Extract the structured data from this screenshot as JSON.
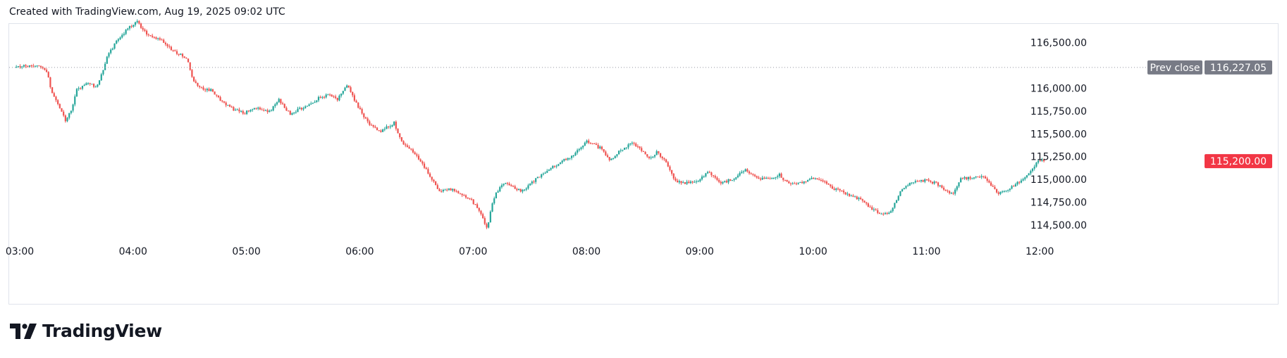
{
  "header": {
    "created_text": "Created with TradingView.com, Aug 19, 2025 09:02 UTC"
  },
  "brand": {
    "name": "TradingView",
    "logo_icon": "tradingview-logo-icon"
  },
  "colors": {
    "up": "#26a69a",
    "down": "#ef5350",
    "prev_close_tag": "#787b86",
    "last_price_tag": "#f23645",
    "grid_border": "#e0e3eb"
  },
  "chart_data": {
    "type": "candlestick",
    "time_labels": [
      "03:00",
      "04:00",
      "05:00",
      "06:00",
      "07:00",
      "08:00",
      "09:00",
      "10:00",
      "11:00",
      "12:00"
    ],
    "price_labels": [
      "116,500.00",
      "116,000.00",
      "115,750.00",
      "115,500.00",
      "115,250.00",
      "115,000.00",
      "114,750.00",
      "114,500.00"
    ],
    "price_ticks": [
      116500,
      116000,
      115750,
      115500,
      115250,
      115000,
      114750,
      114500
    ],
    "ylim": [
      114400,
      116760
    ],
    "prev_close": {
      "label": "Prev close",
      "value": 116227.05,
      "value_label": "116,227.05"
    },
    "last_price": {
      "value": 115200.0,
      "value_label": "115,200.00"
    },
    "path_hours": [
      2.97,
      3.05,
      3.15,
      3.25,
      3.3,
      3.35,
      3.42,
      3.47,
      3.52,
      3.6,
      3.7,
      3.8,
      3.9,
      3.97,
      4.05,
      4.12,
      4.18,
      4.28,
      4.35,
      4.42,
      4.5,
      4.55,
      4.6,
      4.7,
      4.8,
      4.9,
      5.0,
      5.1,
      5.22,
      5.3,
      5.4,
      5.5,
      5.58,
      5.66,
      5.74,
      5.82,
      5.86,
      5.9,
      6.0,
      6.1,
      6.2,
      6.32,
      6.38,
      6.48,
      6.58,
      6.66,
      6.72,
      6.8,
      6.9,
      7.0,
      7.08,
      7.14,
      7.18,
      7.22,
      7.28,
      7.35,
      7.45,
      7.55,
      7.7,
      7.8,
      7.9,
      8.02,
      8.08,
      8.16,
      8.22,
      8.3,
      8.42,
      8.5,
      8.58,
      8.64,
      8.72,
      8.8,
      8.9,
      9.0,
      9.1,
      9.2,
      9.3,
      9.42,
      9.52,
      9.62,
      9.72,
      9.8,
      9.9,
      10.0,
      10.1,
      10.2,
      10.3,
      10.4,
      10.46,
      10.52,
      10.58,
      10.64,
      10.7,
      10.8,
      10.9,
      11.0,
      11.1,
      11.2,
      11.25,
      11.32,
      11.45,
      11.52,
      11.58,
      11.64,
      11.72,
      11.8,
      11.88,
      11.94,
      12.0,
      12.05
    ],
    "path_prices": [
      116230,
      116240,
      116250,
      116210,
      115950,
      115850,
      115650,
      115760,
      115980,
      116050,
      116020,
      116380,
      116560,
      116650,
      116730,
      116620,
      116560,
      116520,
      116420,
      116380,
      116300,
      116080,
      116000,
      115980,
      115860,
      115770,
      115730,
      115780,
      115740,
      115880,
      115720,
      115780,
      115820,
      115900,
      115920,
      115880,
      115960,
      116050,
      115800,
      115600,
      115530,
      115620,
      115420,
      115320,
      115150,
      114980,
      114880,
      114900,
      114850,
      114780,
      114640,
      114460,
      114700,
      114850,
      114960,
      114930,
      114870,
      114980,
      115120,
      115200,
      115270,
      115420,
      115380,
      115330,
      115200,
      115300,
      115400,
      115330,
      115220,
      115300,
      115180,
      114980,
      114960,
      114990,
      115080,
      114960,
      115000,
      115110,
      115020,
      115000,
      115050,
      114950,
      114960,
      115010,
      114990,
      114900,
      114850,
      114800,
      114760,
      114690,
      114640,
      114610,
      114650,
      114900,
      114970,
      114990,
      114960,
      114860,
      114840,
      115010,
      115020,
      115040,
      114940,
      114850,
      114870,
      114950,
      115010,
      115110,
      115190,
      115230,
      115200
    ]
  }
}
